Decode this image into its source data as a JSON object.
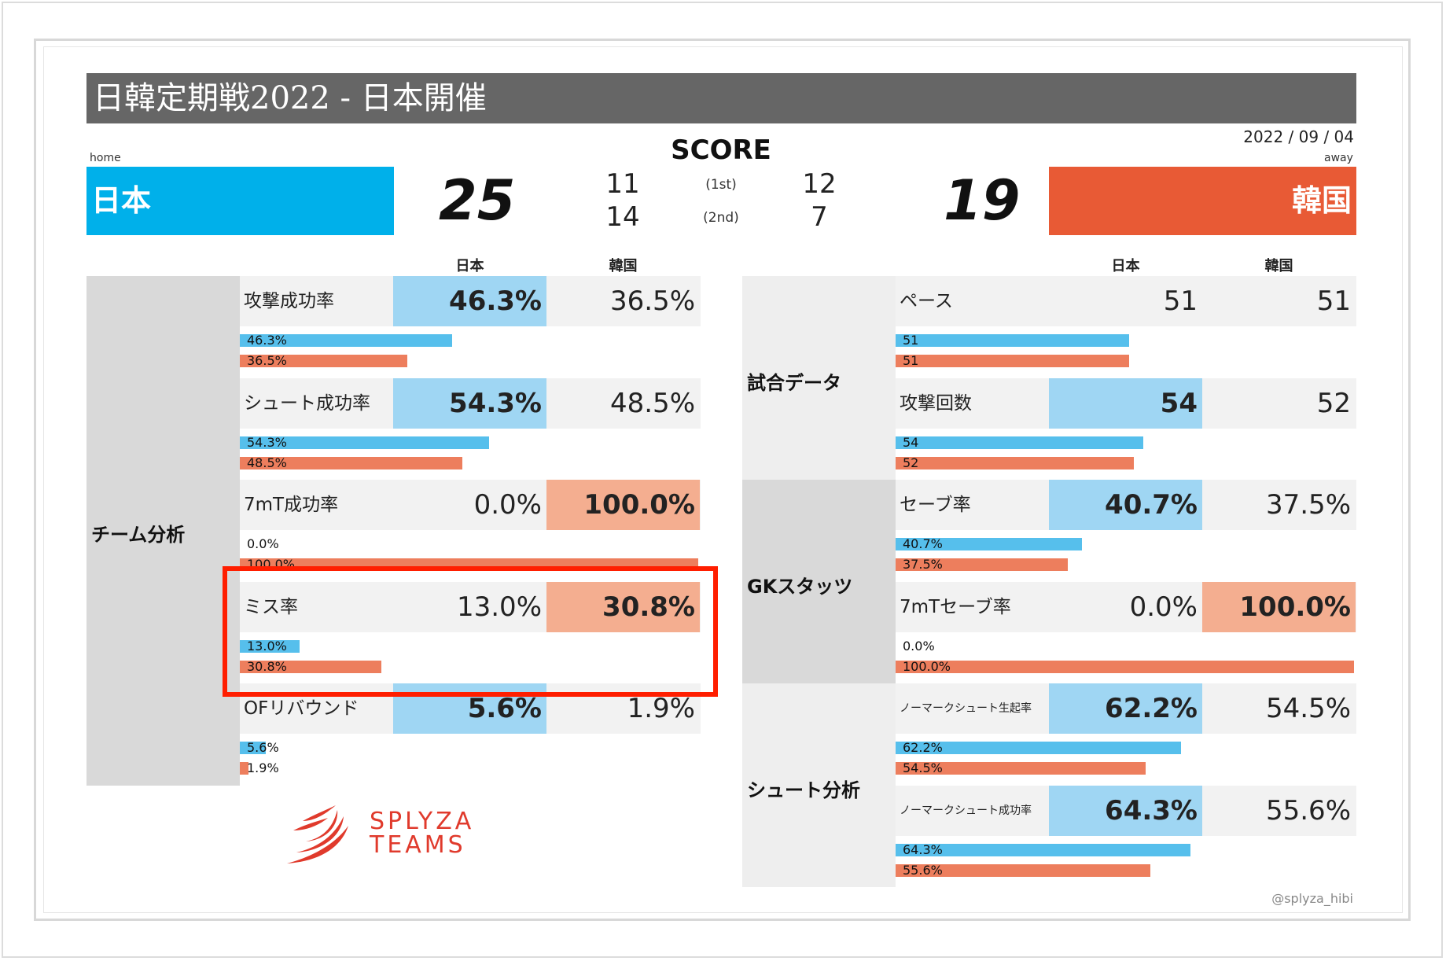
{
  "header": {
    "title": "日韓定期戦2022 - 日本開催",
    "date": "2022 / 09 / 04"
  },
  "score": {
    "title": "SCORE",
    "home_label": "home",
    "away_label": "away",
    "home_team": "日本",
    "away_team": "韓国",
    "home_total": "25",
    "away_total": "19",
    "first_half_label": "(1st)",
    "second_half_label": "(2nd)",
    "home_first": "11",
    "home_second": "14",
    "away_first": "12",
    "away_second": "7"
  },
  "columns": {
    "home": "日本",
    "away": "韓国"
  },
  "left": {
    "section": "チーム分析",
    "rows": [
      {
        "name": "攻撃成功率",
        "home": "46.3%",
        "away": "36.5%",
        "home_frac": 0.463,
        "away_frac": 0.365,
        "best": "home"
      },
      {
        "name": "シュート成功率",
        "home": "54.3%",
        "away": "48.5%",
        "home_frac": 0.543,
        "away_frac": 0.485,
        "best": "home"
      },
      {
        "name": "7mT成功率",
        "home": "0.0%",
        "away": "100.0%",
        "home_frac": 0.0,
        "away_frac": 1.0,
        "best": "away"
      },
      {
        "name": "ミス率",
        "home": "13.0%",
        "away": "30.8%",
        "home_frac": 0.13,
        "away_frac": 0.308,
        "best": "away"
      },
      {
        "name": "OFリバウンド",
        "home": "5.6%",
        "away": "1.9%",
        "home_frac": 0.056,
        "away_frac": 0.019,
        "best": "home"
      }
    ]
  },
  "right": {
    "sections": [
      {
        "name": "試合データ",
        "rows": [
          {
            "name": "ペース",
            "home": "51",
            "away": "51",
            "home_frac": 0.51,
            "away_frac": 0.51,
            "best": "none"
          },
          {
            "name": "攻撃回数",
            "home": "54",
            "away": "52",
            "home_frac": 0.54,
            "away_frac": 0.52,
            "best": "home"
          }
        ]
      },
      {
        "name": "GKスタッツ",
        "rows": [
          {
            "name": "セーブ率",
            "home": "40.7%",
            "away": "37.5%",
            "home_frac": 0.407,
            "away_frac": 0.375,
            "best": "home"
          },
          {
            "name": "7mTセーブ率",
            "home": "0.0%",
            "away": "100.0%",
            "home_frac": 0.0,
            "away_frac": 1.0,
            "best": "away"
          }
        ]
      },
      {
        "name": "シュート分析",
        "rows": [
          {
            "name": "ノーマークシュート生起率",
            "home": "62.2%",
            "away": "54.5%",
            "home_frac": 0.622,
            "away_frac": 0.545,
            "best": "home"
          },
          {
            "name": "ノーマークシュート成功率",
            "home": "64.3%",
            "away": "55.6%",
            "home_frac": 0.643,
            "away_frac": 0.556,
            "best": "home"
          }
        ]
      }
    ]
  },
  "logo": {
    "line1": "SPLYZA",
    "line2": "TEAMS"
  },
  "watermark": "@splyza_hibi",
  "colors": {
    "home": "#00b0ea",
    "away": "#e85a35",
    "home_bar": "#56bfec",
    "away_bar": "#ed7e5d",
    "highlight": "#ff1e00"
  }
}
